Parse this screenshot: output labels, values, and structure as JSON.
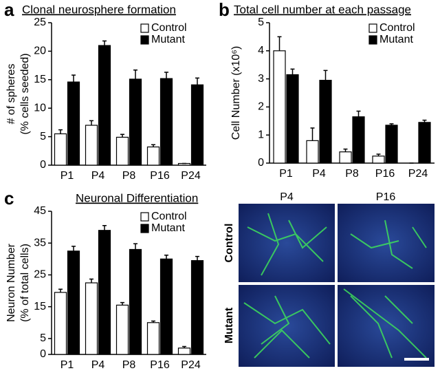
{
  "chart_data": [
    {
      "type": "bar",
      "panel": "a",
      "title": "Clonal neurosphere formation",
      "ylabel": [
        "# of spheres",
        "(% cells seeded)"
      ],
      "categories": [
        "P1",
        "P4",
        "P8",
        "P16",
        "P24"
      ],
      "series": [
        {
          "name": "Control",
          "color": "#ffffff",
          "values": [
            5.5,
            7,
            4.9,
            3.2,
            0.3
          ],
          "errors": [
            0.7,
            0.8,
            0.5,
            0.4,
            0
          ]
        },
        {
          "name": "Mutant",
          "color": "#000000",
          "values": [
            14.6,
            21,
            15.1,
            15.2,
            14.1
          ],
          "errors": [
            1.2,
            0.8,
            1.6,
            1.1,
            1.2
          ]
        }
      ],
      "ylim": [
        0,
        25
      ],
      "yticks": [
        0,
        5,
        10,
        15,
        20,
        25
      ],
      "legend": "upper right"
    },
    {
      "type": "bar",
      "panel": "b",
      "title": "Total cell number at each passage",
      "ylabel": [
        "Cell Number (x10⁶)"
      ],
      "categories": [
        "P1",
        "P4",
        "P8",
        "P16",
        "P24"
      ],
      "series": [
        {
          "name": "Control",
          "color": "#ffffff",
          "values": [
            4.0,
            0.8,
            0.4,
            0.25,
            0
          ],
          "errors": [
            0.5,
            0.45,
            0.1,
            0.07,
            0
          ]
        },
        {
          "name": "Mutant",
          "color": "#000000",
          "values": [
            3.15,
            2.95,
            1.65,
            1.35,
            1.45
          ],
          "errors": [
            0.2,
            0.35,
            0.2,
            0.05,
            0.08
          ]
        }
      ],
      "ylim": [
        0,
        5
      ],
      "yticks": [
        0,
        1,
        2,
        3,
        4,
        5
      ],
      "legend": "upper right"
    },
    {
      "type": "bar",
      "panel": "c",
      "title": "Neuronal Differentiation",
      "ylabel": [
        "Neuron Number",
        "(% of total cells)"
      ],
      "categories": [
        "P1",
        "P4",
        "P8",
        "P16",
        "P24"
      ],
      "series": [
        {
          "name": "Control",
          "color": "#ffffff",
          "values": [
            19.5,
            22.5,
            15.5,
            10,
            2
          ],
          "errors": [
            1,
            1.2,
            0.8,
            0.5,
            0.5
          ]
        },
        {
          "name": "Mutant",
          "color": "#000000",
          "values": [
            32.5,
            39,
            33,
            30,
            29.5
          ],
          "errors": [
            1.5,
            1.5,
            1.8,
            1.2,
            1.3
          ]
        }
      ],
      "ylim": [
        0,
        45
      ],
      "yticks": [
        0,
        5,
        15,
        25,
        35,
        45
      ],
      "legend": "upper right"
    }
  ],
  "image_panel": {
    "columns": [
      "P4",
      "P16"
    ],
    "rows": [
      "Control",
      "Mutant"
    ]
  }
}
